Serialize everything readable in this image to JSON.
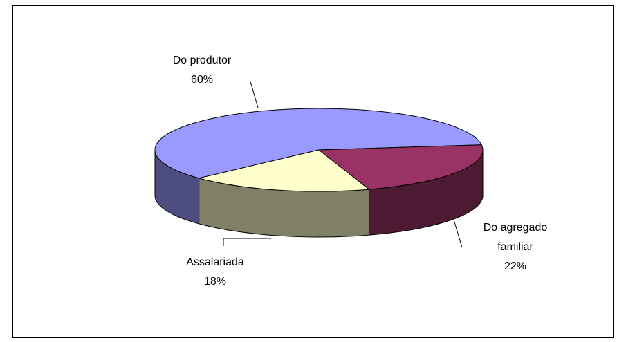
{
  "chart_data": {
    "type": "pie3d",
    "categories": [
      "Do produtor",
      "Do agregado familiar",
      "Assalariada"
    ],
    "values": [
      60,
      22,
      18
    ],
    "value_labels": [
      "60%",
      "22%",
      "18%"
    ],
    "colors": [
      "#9999ff",
      "#993366",
      "#ffffcc"
    ],
    "side_colors": [
      "#4d4d80",
      "#4d1a33",
      "#808066"
    ]
  }
}
